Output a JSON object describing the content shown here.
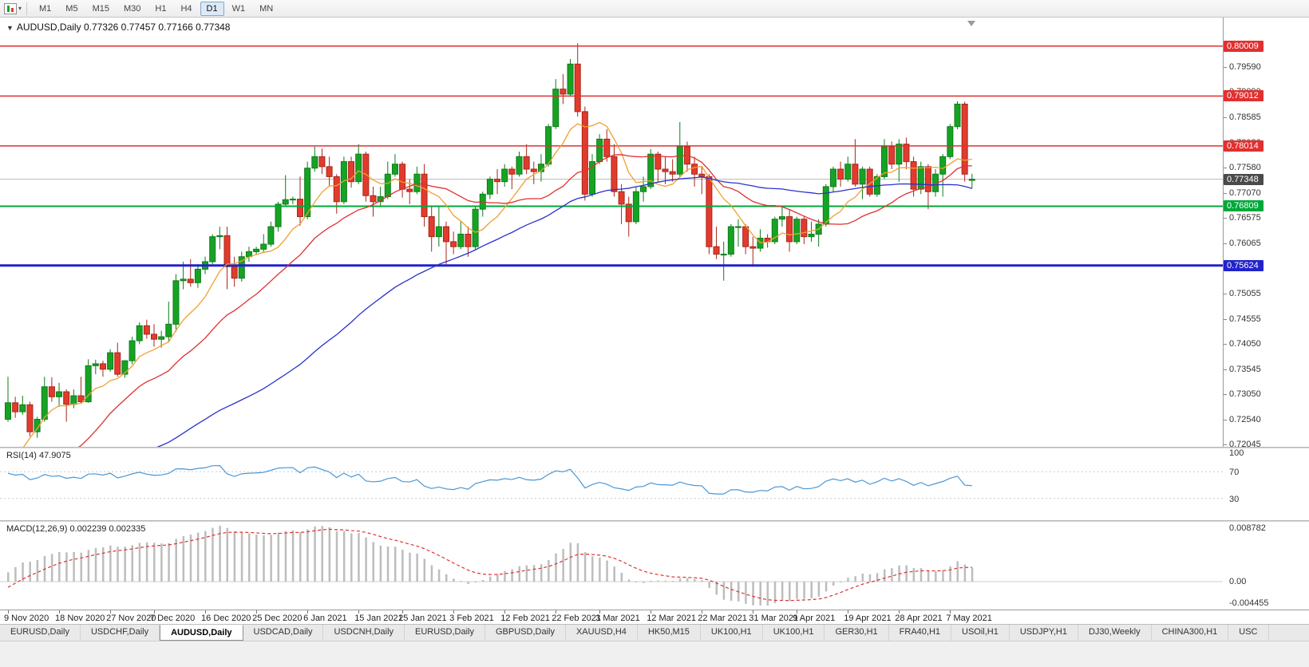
{
  "icons": {
    "caret_down": "▼",
    "caret_down_small": "▾"
  },
  "toolbar": {
    "timeframes": [
      "M1",
      "M5",
      "M15",
      "M30",
      "H1",
      "H4",
      "D1",
      "W1",
      "MN"
    ],
    "active": "D1"
  },
  "chart": {
    "symbol_period": "AUDUSD,Daily",
    "ohlc_text": "0.77326 0.77457 0.77166 0.77348",
    "current_price": 0.77348,
    "colors": {
      "up": "#16a324",
      "up_border": "#0e7c1a",
      "down": "#e23b2c",
      "down_border": "#a6271c",
      "current_line": "#b8b8b8"
    },
    "price_axis": {
      "min": 0.72,
      "max": 0.8058,
      "ticks": [
        "0.79590",
        "0.79090",
        "0.78585",
        "0.78080",
        "0.77580",
        "0.77070",
        "0.76575",
        "0.76065",
        "0.75560",
        "0.75055",
        "0.74555",
        "0.74050",
        "0.73545",
        "0.73050",
        "0.72540",
        "0.72045"
      ]
    },
    "hlines": [
      {
        "price": 0.80009,
        "color": "#e03030",
        "width": 1.5
      },
      {
        "price": 0.79012,
        "color": "#e03030",
        "width": 1.5
      },
      {
        "price": 0.78014,
        "color": "#e03030",
        "width": 1.5
      },
      {
        "price": 0.76809,
        "color": "#00a838",
        "width": 2
      },
      {
        "price": 0.75624,
        "color": "#2222cc",
        "width": 3
      }
    ],
    "price_tags": [
      {
        "label": "0.80009",
        "price": 0.80009,
        "bg": "#e03030"
      },
      {
        "label": "0.79012",
        "price": 0.79012,
        "bg": "#e03030"
      },
      {
        "label": "0.78014",
        "price": 0.78014,
        "bg": "#e03030"
      },
      {
        "label": "0.77348",
        "price": 0.77348,
        "bg": "#4a4a4a"
      },
      {
        "label": "0.76809",
        "price": 0.76809,
        "bg": "#00a838"
      },
      {
        "label": "0.75624",
        "price": 0.75624,
        "bg": "#2222cc"
      }
    ],
    "mas": [
      {
        "period": 8,
        "color": "#f0a030"
      },
      {
        "period": 20,
        "color": "#e03030"
      },
      {
        "period": 55,
        "color": "#2a32cc"
      }
    ],
    "seed_closes": [
      0.728,
      0.731,
      0.734,
      0.7362,
      0.737,
      0.733,
      0.729,
      0.726,
      0.723,
      0.719,
      0.716,
      0.713,
      0.708,
      0.703,
      0.7062,
      0.709,
      0.7112,
      0.7085,
      0.705,
      0.702,
      0.7006,
      0.704,
      0.708,
      0.7112,
      0.715,
      0.7172,
      0.716,
      0.7185,
      0.7205,
      0.719,
      0.7162,
      0.713,
      0.7155,
      0.7172,
      0.7145,
      0.711,
      0.708,
      0.7058,
      0.7095,
      0.7125,
      0.7105,
      0.708,
      0.705,
      0.7022,
      0.703,
      0.7062,
      0.7105,
      0.7142,
      0.7182,
      0.724
    ],
    "candles": [
      [
        0.7255,
        0.734,
        0.725,
        0.7288
      ],
      [
        0.7288,
        0.73,
        0.7258,
        0.727
      ],
      [
        0.727,
        0.7302,
        0.7264,
        0.7284
      ],
      [
        0.7284,
        0.729,
        0.7221,
        0.723
      ],
      [
        0.723,
        0.726,
        0.7218,
        0.7255
      ],
      [
        0.7255,
        0.734,
        0.725,
        0.732
      ],
      [
        0.732,
        0.7339,
        0.729,
        0.73
      ],
      [
        0.73,
        0.7328,
        0.728,
        0.731
      ],
      [
        0.731,
        0.7315,
        0.725,
        0.7285
      ],
      [
        0.7285,
        0.7315,
        0.7277,
        0.7302
      ],
      [
        0.7302,
        0.734,
        0.7287,
        0.729
      ],
      [
        0.729,
        0.7375,
        0.7288,
        0.7362
      ],
      [
        0.7362,
        0.7374,
        0.7345,
        0.7366
      ],
      [
        0.7366,
        0.7372,
        0.734,
        0.7355
      ],
      [
        0.7355,
        0.7395,
        0.735,
        0.7388
      ],
      [
        0.7388,
        0.7408,
        0.734,
        0.7345
      ],
      [
        0.7345,
        0.7373,
        0.7338,
        0.7372
      ],
      [
        0.7372,
        0.742,
        0.7365,
        0.7412
      ],
      [
        0.7412,
        0.7449,
        0.7405,
        0.7442
      ],
      [
        0.7442,
        0.7454,
        0.7416,
        0.7425
      ],
      [
        0.7425,
        0.7445,
        0.74,
        0.7415
      ],
      [
        0.7415,
        0.7432,
        0.7398,
        0.742
      ],
      [
        0.742,
        0.749,
        0.741,
        0.7445
      ],
      [
        0.7445,
        0.7545,
        0.743,
        0.7532
      ],
      [
        0.7532,
        0.757,
        0.7515,
        0.7535
      ],
      [
        0.7535,
        0.7575,
        0.752,
        0.7528
      ],
      [
        0.7528,
        0.7565,
        0.7518,
        0.7555
      ],
      [
        0.7555,
        0.758,
        0.7545,
        0.757
      ],
      [
        0.757,
        0.7625,
        0.7565,
        0.762
      ],
      [
        0.762,
        0.764,
        0.7595,
        0.7622
      ],
      [
        0.7622,
        0.764,
        0.7515,
        0.756
      ],
      [
        0.756,
        0.758,
        0.752,
        0.7537
      ],
      [
        0.7537,
        0.759,
        0.753,
        0.758
      ],
      [
        0.758,
        0.76,
        0.757,
        0.759
      ],
      [
        0.759,
        0.76,
        0.7585,
        0.7595
      ],
      [
        0.7595,
        0.7625,
        0.7588,
        0.7605
      ],
      [
        0.7605,
        0.765,
        0.76,
        0.764
      ],
      [
        0.764,
        0.769,
        0.763,
        0.7685
      ],
      [
        0.7685,
        0.7743,
        0.768,
        0.7694
      ],
      [
        0.7694,
        0.77,
        0.7685,
        0.7695
      ],
      [
        0.7695,
        0.774,
        0.7642,
        0.766
      ],
      [
        0.766,
        0.777,
        0.7655,
        0.7757
      ],
      [
        0.7757,
        0.78,
        0.775,
        0.778
      ],
      [
        0.778,
        0.7796,
        0.7745,
        0.776
      ],
      [
        0.776,
        0.778,
        0.772,
        0.774
      ],
      [
        0.774,
        0.7745,
        0.7666,
        0.769
      ],
      [
        0.769,
        0.778,
        0.7685,
        0.777
      ],
      [
        0.777,
        0.778,
        0.7718,
        0.773
      ],
      [
        0.773,
        0.7805,
        0.7725,
        0.7785
      ],
      [
        0.7785,
        0.779,
        0.769,
        0.7702
      ],
      [
        0.7702,
        0.772,
        0.766,
        0.769
      ],
      [
        0.769,
        0.772,
        0.768,
        0.77
      ],
      [
        0.77,
        0.777,
        0.7695,
        0.7745
      ],
      [
        0.7745,
        0.7785,
        0.774,
        0.7765
      ],
      [
        0.7765,
        0.777,
        0.7698,
        0.7715
      ],
      [
        0.7715,
        0.7735,
        0.7685,
        0.771
      ],
      [
        0.771,
        0.776,
        0.7705,
        0.7745
      ],
      [
        0.7745,
        0.7765,
        0.764,
        0.766
      ],
      [
        0.766,
        0.768,
        0.759,
        0.762
      ],
      [
        0.762,
        0.768,
        0.76,
        0.764
      ],
      [
        0.764,
        0.765,
        0.7565,
        0.761
      ],
      [
        0.761,
        0.763,
        0.7585,
        0.76
      ],
      [
        0.76,
        0.765,
        0.7595,
        0.7625
      ],
      [
        0.7625,
        0.764,
        0.758,
        0.76
      ],
      [
        0.76,
        0.768,
        0.7595,
        0.7675
      ],
      [
        0.7675,
        0.771,
        0.766,
        0.7705
      ],
      [
        0.7705,
        0.774,
        0.7695,
        0.7735
      ],
      [
        0.7735,
        0.7755,
        0.7705,
        0.773
      ],
      [
        0.773,
        0.7765,
        0.772,
        0.7755
      ],
      [
        0.7755,
        0.776,
        0.7715,
        0.7745
      ],
      [
        0.7745,
        0.779,
        0.774,
        0.778
      ],
      [
        0.778,
        0.7805,
        0.7745,
        0.7755
      ],
      [
        0.7755,
        0.777,
        0.7725,
        0.775
      ],
      [
        0.775,
        0.7785,
        0.773,
        0.7765
      ],
      [
        0.7765,
        0.7845,
        0.776,
        0.784
      ],
      [
        0.784,
        0.7935,
        0.7835,
        0.7915
      ],
      [
        0.7915,
        0.7945,
        0.7885,
        0.7905
      ],
      [
        0.7905,
        0.7975,
        0.79,
        0.7965
      ],
      [
        0.7965,
        0.8007,
        0.786,
        0.787
      ],
      [
        0.787,
        0.788,
        0.7692,
        0.7705
      ],
      [
        0.7705,
        0.7785,
        0.77,
        0.777
      ],
      [
        0.777,
        0.7825,
        0.7765,
        0.7815
      ],
      [
        0.7815,
        0.7835,
        0.777,
        0.778
      ],
      [
        0.778,
        0.7805,
        0.77,
        0.771
      ],
      [
        0.771,
        0.7725,
        0.7645,
        0.7685
      ],
      [
        0.7685,
        0.77,
        0.762,
        0.765
      ],
      [
        0.765,
        0.772,
        0.7645,
        0.771
      ],
      [
        0.771,
        0.774,
        0.769,
        0.772
      ],
      [
        0.772,
        0.7795,
        0.7715,
        0.7785
      ],
      [
        0.7785,
        0.779,
        0.773,
        0.7755
      ],
      [
        0.7755,
        0.778,
        0.7725,
        0.775
      ],
      [
        0.775,
        0.7775,
        0.773,
        0.7745
      ],
      [
        0.7745,
        0.7849,
        0.774,
        0.78
      ],
      [
        0.78,
        0.781,
        0.775,
        0.7765
      ],
      [
        0.7765,
        0.778,
        0.772,
        0.7745
      ],
      [
        0.7745,
        0.776,
        0.7705,
        0.774
      ],
      [
        0.774,
        0.7745,
        0.7585,
        0.76
      ],
      [
        0.76,
        0.764,
        0.7575,
        0.7585
      ],
      [
        0.7585,
        0.761,
        0.7532,
        0.7585
      ],
      [
        0.7585,
        0.7645,
        0.758,
        0.764
      ],
      [
        0.764,
        0.7655,
        0.76,
        0.764
      ],
      [
        0.764,
        0.7645,
        0.7585,
        0.76
      ],
      [
        0.76,
        0.762,
        0.756,
        0.7597
      ],
      [
        0.7597,
        0.7635,
        0.759,
        0.7617
      ],
      [
        0.7617,
        0.7625,
        0.7598,
        0.761
      ],
      [
        0.761,
        0.766,
        0.7605,
        0.7655
      ],
      [
        0.7655,
        0.768,
        0.764,
        0.766
      ],
      [
        0.766,
        0.7675,
        0.759,
        0.761
      ],
      [
        0.761,
        0.766,
        0.7605,
        0.7655
      ],
      [
        0.7655,
        0.766,
        0.7605,
        0.762
      ],
      [
        0.762,
        0.765,
        0.761,
        0.7625
      ],
      [
        0.7625,
        0.7655,
        0.76,
        0.7645
      ],
      [
        0.7645,
        0.7725,
        0.764,
        0.772
      ],
      [
        0.772,
        0.776,
        0.771,
        0.7755
      ],
      [
        0.7755,
        0.777,
        0.772,
        0.7735
      ],
      [
        0.7735,
        0.778,
        0.773,
        0.7765
      ],
      [
        0.7765,
        0.7815,
        0.772,
        0.7725
      ],
      [
        0.7725,
        0.776,
        0.7695,
        0.7755
      ],
      [
        0.7755,
        0.776,
        0.77,
        0.7705
      ],
      [
        0.7705,
        0.7745,
        0.77,
        0.774
      ],
      [
        0.774,
        0.7815,
        0.7735,
        0.78
      ],
      [
        0.78,
        0.781,
        0.7755,
        0.7765
      ],
      [
        0.7765,
        0.7815,
        0.773,
        0.7805
      ],
      [
        0.7805,
        0.7818,
        0.7755,
        0.777
      ],
      [
        0.777,
        0.778,
        0.77,
        0.7715
      ],
      [
        0.7715,
        0.777,
        0.7705,
        0.776
      ],
      [
        0.776,
        0.7765,
        0.7675,
        0.771
      ],
      [
        0.771,
        0.7755,
        0.77,
        0.7745
      ],
      [
        0.7745,
        0.7785,
        0.77,
        0.778
      ],
      [
        0.778,
        0.7845,
        0.7775,
        0.784
      ],
      [
        0.784,
        0.7891,
        0.7835,
        0.7885
      ],
      [
        0.7885,
        0.789,
        0.773,
        0.7745
      ],
      [
        0.77326,
        0.77457,
        0.77166,
        0.77348
      ]
    ]
  },
  "rsi": {
    "name": "RSI(14)",
    "value": "47.9075",
    "period": 14,
    "color": "#4a97d6",
    "level_color": "#c9c9c9",
    "axis_labels": [
      {
        "label": "100",
        "value": 100
      },
      {
        "label": "70",
        "value": 70
      },
      {
        "label": "30",
        "value": 30
      }
    ]
  },
  "macd": {
    "name": "MACD(12,26,9)",
    "value_main": "0.002239",
    "value_signal": "0.002335",
    "fast": 12,
    "slow": 26,
    "signal": 9,
    "hist_color": "#bdbdbd",
    "signal_color": "#e03030",
    "axis_labels": [
      "0.008782",
      "0.00",
      "-0.004455"
    ]
  },
  "time_scale": {
    "ticks": [
      {
        "label": "9 Nov 2020",
        "index": 0
      },
      {
        "label": "18 Nov 2020",
        "index": 7
      },
      {
        "label": "27 Nov 2020",
        "index": 14
      },
      {
        "label": "7 Dec 2020",
        "index": 20
      },
      {
        "label": "16 Dec 2020",
        "index": 27
      },
      {
        "label": "25 Dec 2020",
        "index": 34
      },
      {
        "label": "6 Jan 2021",
        "index": 41
      },
      {
        "label": "15 Jan 2021",
        "index": 48
      },
      {
        "label": "25 Jan 2021",
        "index": 54
      },
      {
        "label": "3 Feb 2021",
        "index": 61
      },
      {
        "label": "12 Feb 2021",
        "index": 68
      },
      {
        "label": "22 Feb 2021",
        "index": 75
      },
      {
        "label": "3 Mar 2021",
        "index": 81
      },
      {
        "label": "12 Mar 2021",
        "index": 88
      },
      {
        "label": "22 Mar 2021",
        "index": 95
      },
      {
        "label": "31 Mar 2021",
        "index": 102
      },
      {
        "label": "9 Apr 2021",
        "index": 108
      },
      {
        "label": "19 Apr 2021",
        "index": 115
      },
      {
        "label": "28 Apr 2021",
        "index": 122
      },
      {
        "label": "7 May 2021",
        "index": 129
      }
    ]
  },
  "tabs": {
    "active_index": 2,
    "items": [
      "EURUSD,Daily",
      "USDCHF,Daily",
      "AUDUSD,Daily",
      "USDCAD,Daily",
      "USDCNH,Daily",
      "EURUSD,Daily",
      "GBPUSD,Daily",
      "XAUUSD,H4",
      "HK50,M15",
      "UK100,H1",
      "UK100,H1",
      "GER30,H1",
      "FRA40,H1",
      "USOil,H1",
      "USDJPY,H1",
      "DJ30,Weekly",
      "CHINA300,H1",
      "USC"
    ]
  }
}
